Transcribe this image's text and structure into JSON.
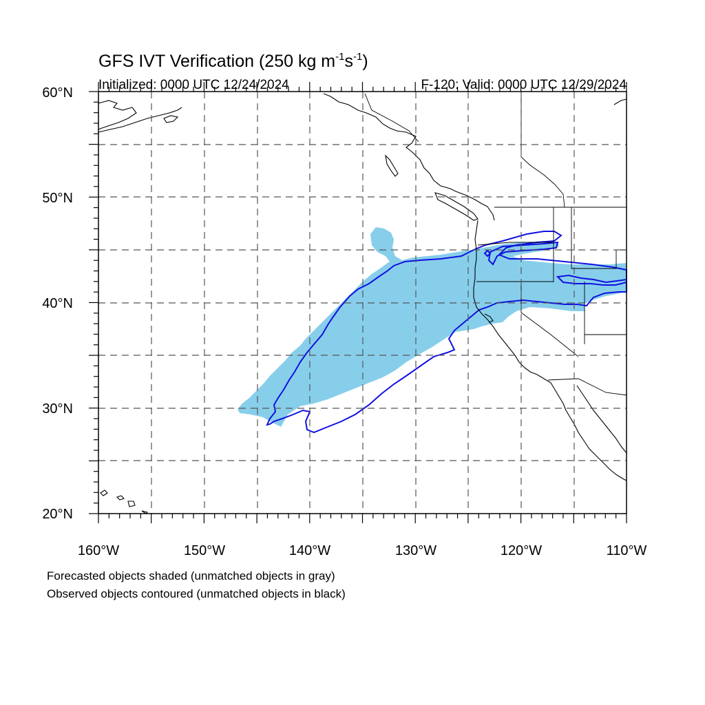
{
  "title_main": "GFS IVT Verification (250 kg m",
  "title_exp1": "-1",
  "title_mid": "s",
  "title_exp2": "-1",
  "title_end": ")",
  "subtitle_left": "Initialized: 0000 UTC 12/24/2024",
  "subtitle_right": "F-120: Valid: 0000 UTC 12/29/2024",
  "note_line1": "Forecasted objects shaded (unmatched objects in gray)",
  "note_line2": "Observed objects contoured (unmatched objects in black)",
  "map": {
    "lon_range": [
      -160,
      -110
    ],
    "lat_range": [
      20,
      60
    ],
    "lon_ticks": [
      "160°W",
      "150°W",
      "140°W",
      "130°W",
      "120°W",
      "110°W"
    ],
    "lat_ticks": [
      "60°N",
      "50°N",
      "40°N",
      "30°N",
      "20°N"
    ],
    "grid_interval_deg": 5,
    "forecast_color": "#87ceeb",
    "observed_color": "#1010e0"
  }
}
